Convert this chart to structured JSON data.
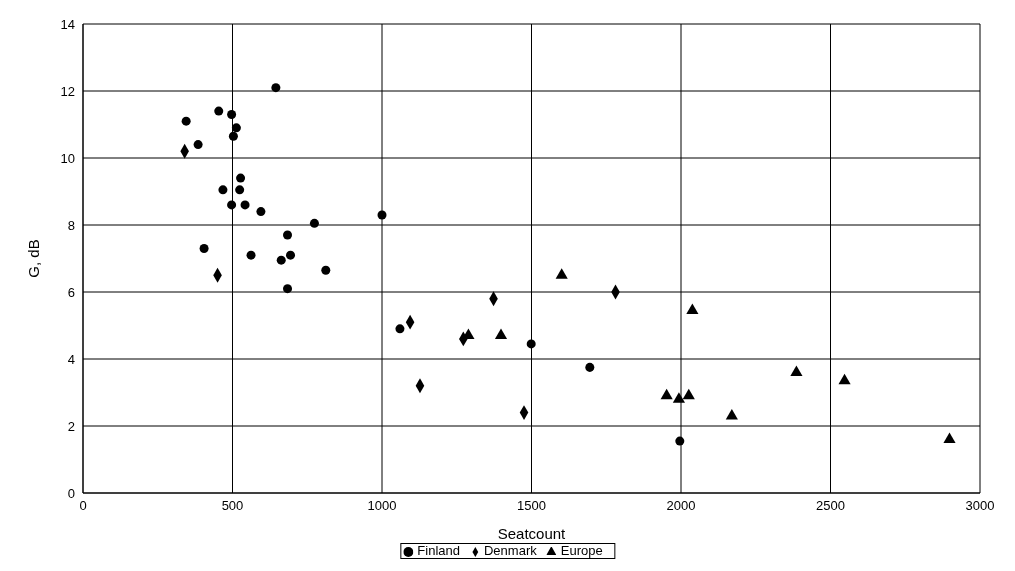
{
  "chart_data": {
    "type": "scatter",
    "xlabel": "Seatcount",
    "ylabel": "G, dB",
    "xlim": [
      0,
      3000
    ],
    "xticks": [
      0,
      500,
      1000,
      1500,
      2000,
      2500,
      3000
    ],
    "ylim": [
      0,
      14
    ],
    "yticks": [
      0,
      2,
      4,
      6,
      8,
      10,
      12,
      14
    ],
    "grid": true,
    "legend": "bottom",
    "series": [
      {
        "name": "Finland",
        "color": "#000000",
        "marker": "circle",
        "x": [
          345,
          454,
          497,
          513,
          503,
          385,
          527,
          468,
          524,
          497,
          542,
          595,
          774,
          1000,
          684,
          405,
          562,
          663,
          694,
          812,
          684,
          645,
          1060,
          1499,
          1695,
          1996
        ],
        "values": [
          11.1,
          11.4,
          11.3,
          10.9,
          10.65,
          10.4,
          9.4,
          9.05,
          9.05,
          8.6,
          8.6,
          8.4,
          8.05,
          8.3,
          7.7,
          7.3,
          7.1,
          6.95,
          7.1,
          6.65,
          6.1,
          12.1,
          4.9,
          4.45,
          3.75,
          1.55
        ]
      },
      {
        "name": "Denmark",
        "color": "#000000",
        "marker": "diamond",
        "x": [
          340,
          450,
          1094,
          1272,
          1373,
          1781,
          1127,
          1475
        ],
        "values": [
          10.2,
          6.5,
          5.1,
          4.6,
          5.8,
          6.0,
          3.2,
          2.4
        ]
      },
      {
        "name": "Europe",
        "color": "#000000",
        "marker": "triangle",
        "x": [
          1289,
          1398,
          1601,
          2038,
          1952,
          1993,
          2026,
          2170,
          2386,
          2547,
          2898
        ],
        "values": [
          4.7,
          4.7,
          6.5,
          5.45,
          2.9,
          2.8,
          2.9,
          2.3,
          3.6,
          3.35,
          1.6
        ]
      }
    ]
  }
}
